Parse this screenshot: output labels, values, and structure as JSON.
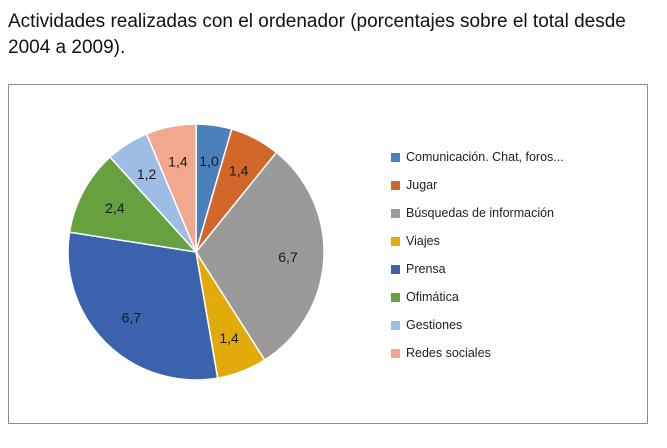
{
  "heading": "Actividades realizadas con el ordenador (porcentajes sobre el total desde 2004 a 2009).",
  "chart_data": {
    "type": "pie",
    "title": "Actividades realizadas con el ordenador (porcentajes sobre el total desde 2004 a 2009).",
    "legend_position": "right",
    "slices": [
      {
        "label": "Comunicación. Chat, foros...",
        "value": 1.0,
        "value_label": "1,0",
        "color": "#4a81bd"
      },
      {
        "label": "Jugar",
        "value": 1.4,
        "value_label": "1,4",
        "color": "#d3672a"
      },
      {
        "label": "Búsquedas de información",
        "value": 6.7,
        "value_label": "6,7",
        "color": "#9a9a9a"
      },
      {
        "label": "Viajes",
        "value": 1.4,
        "value_label": "1,4",
        "color": "#e3ab09"
      },
      {
        "label": "Prensa",
        "value": 6.7,
        "value_label": "6,7",
        "color": "#3a62ad"
      },
      {
        "label": "Ofimática",
        "value": 2.4,
        "value_label": "2,4",
        "color": "#66a03f"
      },
      {
        "label": "Gestiones",
        "value": 1.2,
        "value_label": "1,2",
        "color": "#9ebde4"
      },
      {
        "label": "Redes sociales",
        "value": 1.4,
        "value_label": "1,4",
        "color": "#f1a88c"
      }
    ]
  }
}
